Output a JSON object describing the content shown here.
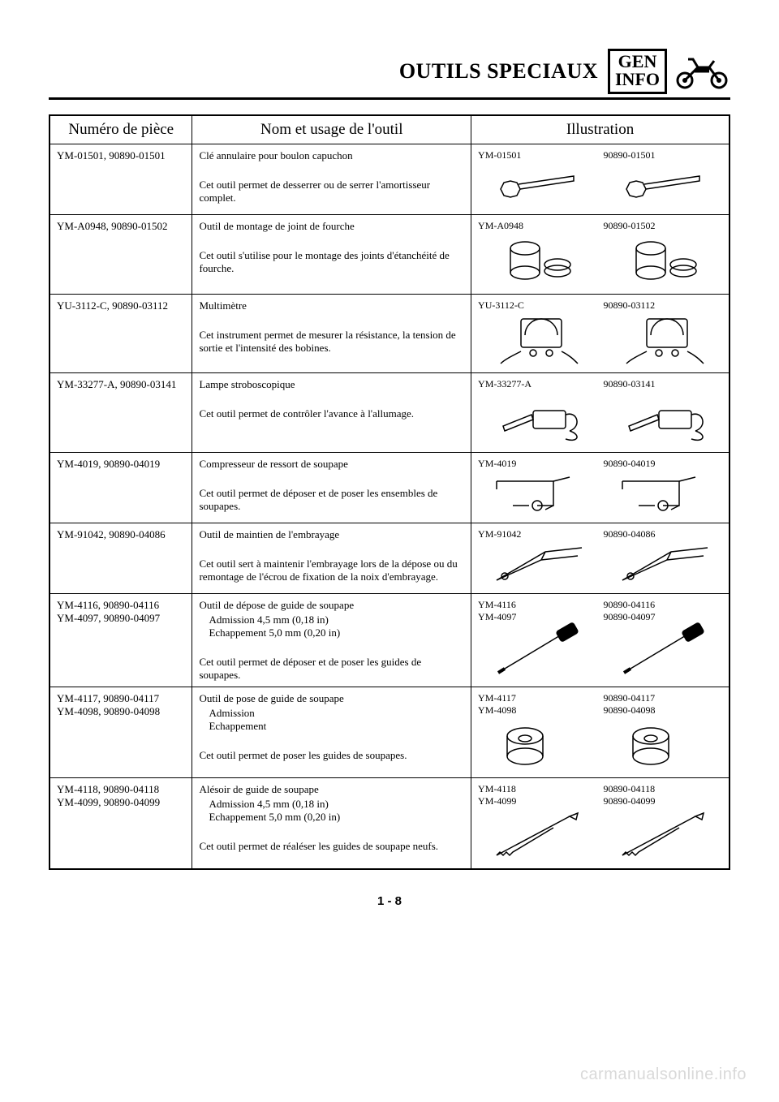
{
  "header": {
    "title": "OUTILS SPECIAUX",
    "box_line1": "GEN",
    "box_line2": "INFO"
  },
  "table": {
    "headers": {
      "part": "Numéro de pièce",
      "name": "Nom et usage de l'outil",
      "illustration": "Illustration"
    },
    "rows": [
      {
        "part": "YM-01501, 90890-01501",
        "name": "Clé annulaire pour boulon capuchon",
        "lines": [],
        "desc": "Cet outil permet de desserrer ou de serrer l'amortisseur complet.",
        "ill_left": "YM-01501",
        "ill_right": "90890-01501",
        "icon": "wrench-ring"
      },
      {
        "part": "YM-A0948, 90890-01502",
        "name": "Outil de montage de joint de fourche",
        "lines": [],
        "desc": "Cet outil s'utilise pour le montage des joints d'étanchéité de fourche.",
        "ill_left": "YM-A0948",
        "ill_right": "90890-01502",
        "icon": "fork-seal"
      },
      {
        "part": "YU-3112-C, 90890-03112",
        "name": "Multimètre",
        "lines": [],
        "desc": "Cet instrument permet de mesurer la résistance, la tension de sortie et l'intensité des bobines.",
        "ill_left": "YU-3112-C",
        "ill_right": "90890-03112",
        "icon": "multimeter"
      },
      {
        "part": "YM-33277-A, 90890-03141",
        "name": "Lampe stroboscopique",
        "lines": [],
        "desc": "Cet outil permet de contrôler l'avance à l'allumage.",
        "ill_left": "YM-33277-A",
        "ill_right": "90890-03141",
        "icon": "strobe"
      },
      {
        "part": "YM-4019, 90890-04019",
        "name": "Compresseur de ressort de soupape",
        "lines": [],
        "desc": "Cet outil permet de déposer et de poser les ensembles de soupapes.",
        "ill_left": "YM-4019",
        "ill_right": "90890-04019",
        "icon": "spring-comp"
      },
      {
        "part": "YM-91042, 90890-04086",
        "name": "Outil de maintien de l'embrayage",
        "lines": [],
        "desc": "Cet outil sert à maintenir l'embrayage lors de la dépose ou du remontage de l'écrou de fixation de la noix d'embrayage.",
        "ill_left": "YM-91042",
        "ill_right": "90890-04086",
        "icon": "clutch-hold"
      },
      {
        "part": "YM-4116, 90890-04116\nYM-4097, 90890-04097",
        "name": "Outil de dépose de guide de soupape",
        "lines": [
          "Admission 4,5 mm (0,18 in)",
          "Echappement 5,0 mm (0,20 in)"
        ],
        "desc": "Cet outil permet de déposer et de poser les guides de soupapes.",
        "ill_left": "YM-4116\nYM-4097",
        "ill_right": "90890-04116\n90890-04097",
        "icon": "guide-remove"
      },
      {
        "part": "YM-4117, 90890-04117\nYM-4098, 90890-04098",
        "name": "Outil de pose de guide de soupape",
        "lines": [
          "Admission",
          "Echappement"
        ],
        "desc": "Cet outil permet de poser les guides de soupapes.",
        "ill_left": "YM-4117\nYM-4098",
        "ill_right": "90890-04117\n90890-04098",
        "icon": "guide-install"
      },
      {
        "part": "YM-4118, 90890-04118\nYM-4099, 90890-04099",
        "name": "Alésoir de guide de soupape",
        "lines": [
          "Admission 4,5 mm (0,18 in)",
          "Echappement 5,0 mm (0,20 in)"
        ],
        "desc": "Cet outil permet de réaléser les guides de soupape neufs.",
        "ill_left": "YM-4118\nYM-4099",
        "ill_right": "90890-04118\n90890-04099",
        "icon": "reamer"
      }
    ]
  },
  "pagenum": "1 - 8",
  "watermark": "carmanualsonline.info"
}
